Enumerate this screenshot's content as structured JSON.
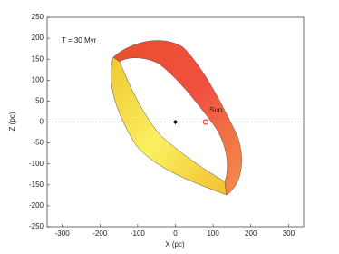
{
  "chart_data": {
    "type": "scatter",
    "xlabel": "X (pc)",
    "ylabel": "Z (pc)",
    "annotations": [
      "T = 30 Myr",
      "Sun"
    ],
    "series": [
      {
        "x": [
          0
        ],
        "values": [
          0
        ],
        "color": "#000000",
        "marker": "diamond"
      },
      {
        "x": [
          80
        ],
        "values": [
          0
        ],
        "color": "#cc2200",
        "marker": "circle"
      }
    ],
    "xlim": [
      -340,
      340
    ],
    "xticks": [
      -300,
      -200,
      -100,
      0,
      100,
      200,
      300
    ],
    "ylim": [
      -250,
      250
    ],
    "yticks": [
      -250,
      -200,
      -150,
      -100,
      -50,
      0,
      50,
      100,
      150,
      200,
      250
    ],
    "zero_line": true
  }
}
